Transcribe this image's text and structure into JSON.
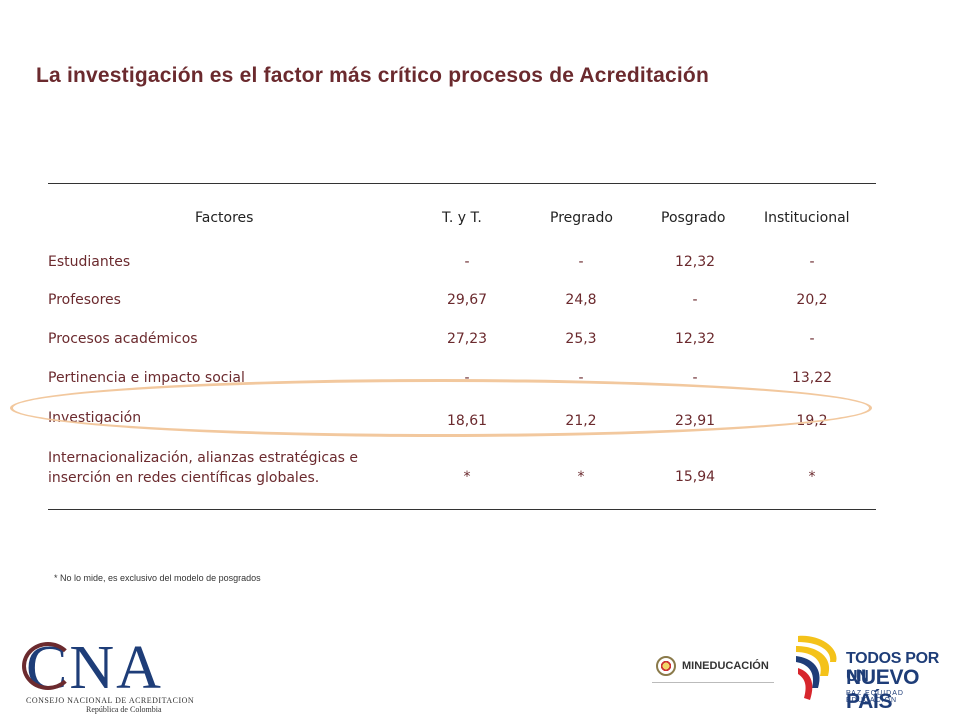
{
  "title": "La investigación es el factor más crítico procesos de Acreditación",
  "table": {
    "headers": [
      "Factores",
      "T. y T.",
      "Pregrado",
      "Posgrado",
      "Institucional"
    ],
    "rows": [
      {
        "factor": "Estudiantes",
        "values": [
          "-",
          "-",
          "12,32",
          "-"
        ]
      },
      {
        "factor": "Profesores",
        "values": [
          "29,67",
          "24,8",
          "-",
          "20,2"
        ]
      },
      {
        "factor": "Procesos académicos",
        "values": [
          "27,23",
          "25,3",
          "12,32",
          "-"
        ]
      },
      {
        "factor": "Pertinencia e impacto social",
        "values": [
          "-",
          "-",
          "-",
          "13,22"
        ]
      },
      {
        "factor": "Investigación",
        "values": [
          "18,61",
          "21,2",
          "23,91",
          "19,2"
        ]
      },
      {
        "factor_line1": "Internacionalización, alianzas estratégicas e",
        "factor_line2": "inserción en redes científicas globales.",
        "values": [
          "*",
          "*",
          "15,94",
          "*"
        ]
      }
    ]
  },
  "footnote": "* No lo mide, es exclusivo del modelo de posgrados",
  "logos": {
    "cna_letters": "CNA",
    "cna_line1": "CONSEJO NACIONAL DE ACREDITACION",
    "cna_line2": "República de Colombia",
    "mineducacion": "MINEDUCACIÓN",
    "gov_line1": "TODOS POR UN",
    "gov_line2": "NUEVO PAÍS",
    "gov_line3": "PAZ  EQUIDAD  EDUCACIÓN"
  },
  "colors": {
    "title": "#6b2a2e",
    "highlight_ellipse": "#f2c89e",
    "brand_blue": "#1e3d78"
  }
}
